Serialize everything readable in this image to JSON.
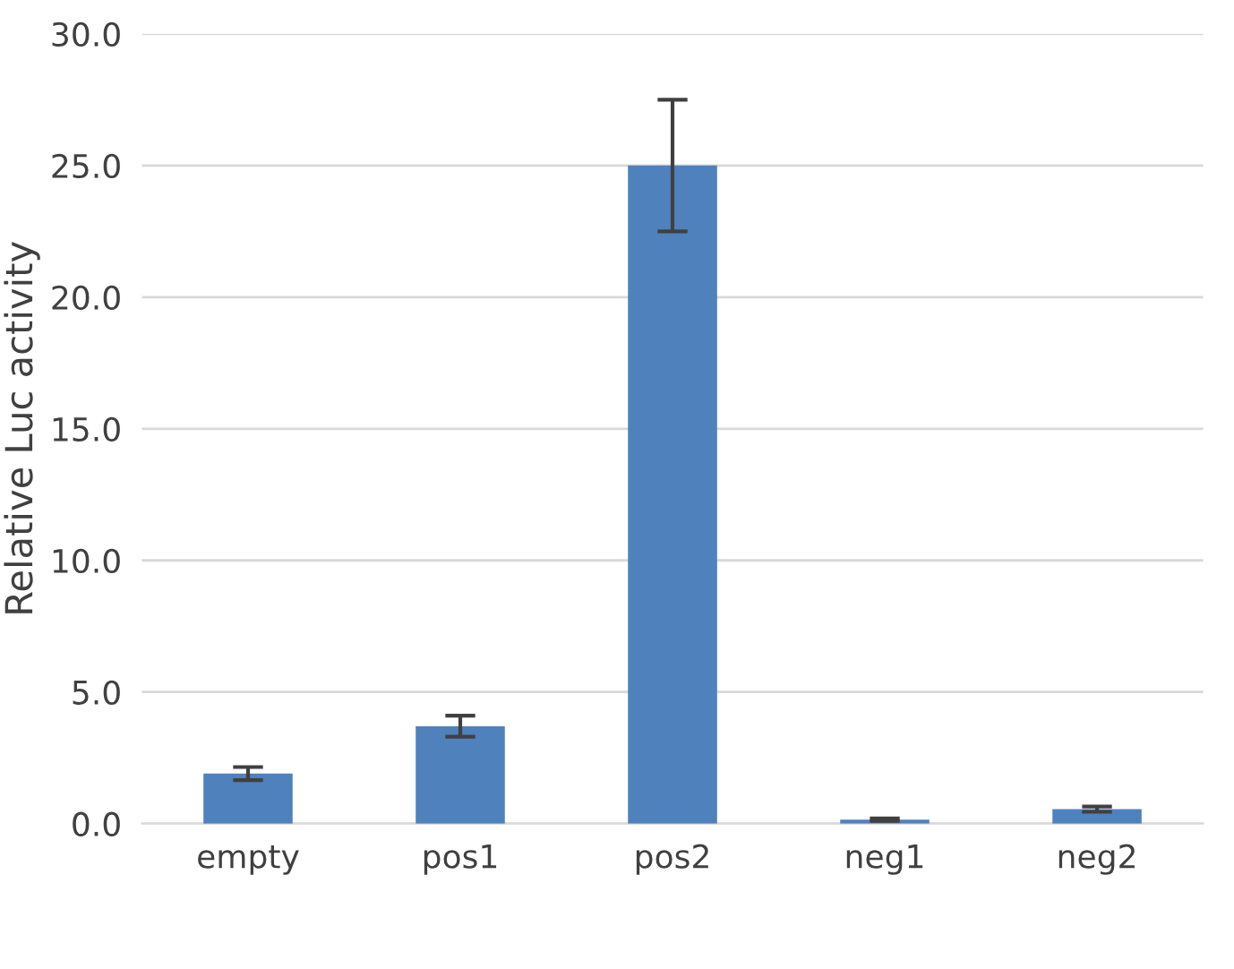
{
  "chart_data": {
    "type": "bar",
    "ylabel": "Relative Luc activity",
    "categories": [
      "empty",
      "pos1",
      "pos2",
      "neg1",
      "neg2"
    ],
    "values": [
      1.9,
      3.7,
      25.0,
      0.15,
      0.55
    ],
    "errors": [
      0.25,
      0.4,
      2.5,
      0.05,
      0.1
    ],
    "color": "#4f81bd",
    "ylim": [
      0,
      30
    ],
    "yticks": [
      {
        "value": 0,
        "label": "0.0"
      },
      {
        "value": 5,
        "label": "5.0"
      },
      {
        "value": 10,
        "label": "10.0"
      },
      {
        "value": 15,
        "label": "15.0"
      },
      {
        "value": 20,
        "label": "20.0"
      },
      {
        "value": 25,
        "label": "25.0"
      },
      {
        "value": 30,
        "label": "30.0"
      }
    ],
    "grid": "y"
  }
}
